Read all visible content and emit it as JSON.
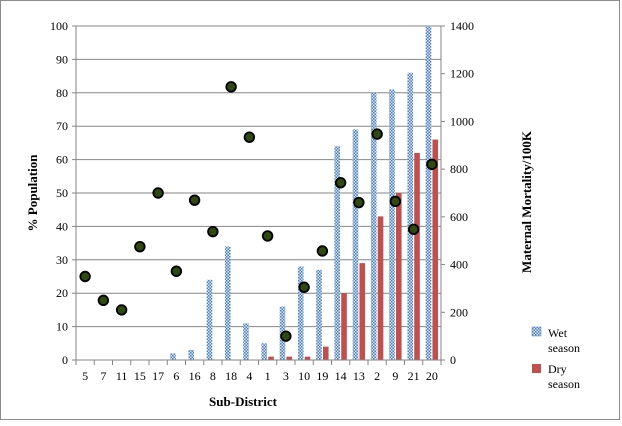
{
  "chart_data": {
    "type": "bar",
    "xlabel": "Sub-District",
    "ylabel": "% Population",
    "y2label": "Maternal Mortality/100K",
    "ylim": [
      0,
      100
    ],
    "yticks": [
      0,
      10,
      20,
      30,
      40,
      50,
      60,
      70,
      80,
      90,
      100
    ],
    "y2lim": [
      0,
      1400
    ],
    "y2ticks": [
      0,
      200,
      400,
      600,
      800,
      1000,
      1200,
      1400
    ],
    "grid": "horizontal",
    "legend_position": "right",
    "categories": [
      "5",
      "7",
      "11",
      "15",
      "17",
      "6",
      "16",
      "8",
      "18",
      "4",
      "1",
      "3",
      "10",
      "19",
      "14",
      "13",
      "2",
      "9",
      "21",
      "20"
    ],
    "series": [
      {
        "name": "Wet season",
        "kind": "bar",
        "axis": "left",
        "color": "#4f81bd",
        "pattern": "checker",
        "values": [
          0,
          0,
          0,
          0,
          0,
          2,
          3,
          24,
          34,
          11,
          5,
          16,
          28,
          27,
          64,
          69,
          80,
          81,
          86,
          100
        ]
      },
      {
        "name": "Dry season",
        "kind": "bar",
        "axis": "left",
        "color": "#c0504d",
        "pattern": "solid",
        "values": [
          0,
          0,
          0,
          0,
          0,
          0,
          0,
          0,
          0,
          0,
          1,
          1,
          1,
          4,
          20,
          29,
          43,
          50,
          62,
          66
        ]
      },
      {
        "kind": "scatter",
        "axis": "right",
        "color": "#000000",
        "fill": "#2e4a10",
        "values": [
          350,
          250,
          210,
          475,
          700,
          372,
          670,
          538,
          1145,
          934,
          520,
          100,
          305,
          457,
          743,
          660,
          947,
          665,
          548,
          820
        ]
      }
    ]
  }
}
